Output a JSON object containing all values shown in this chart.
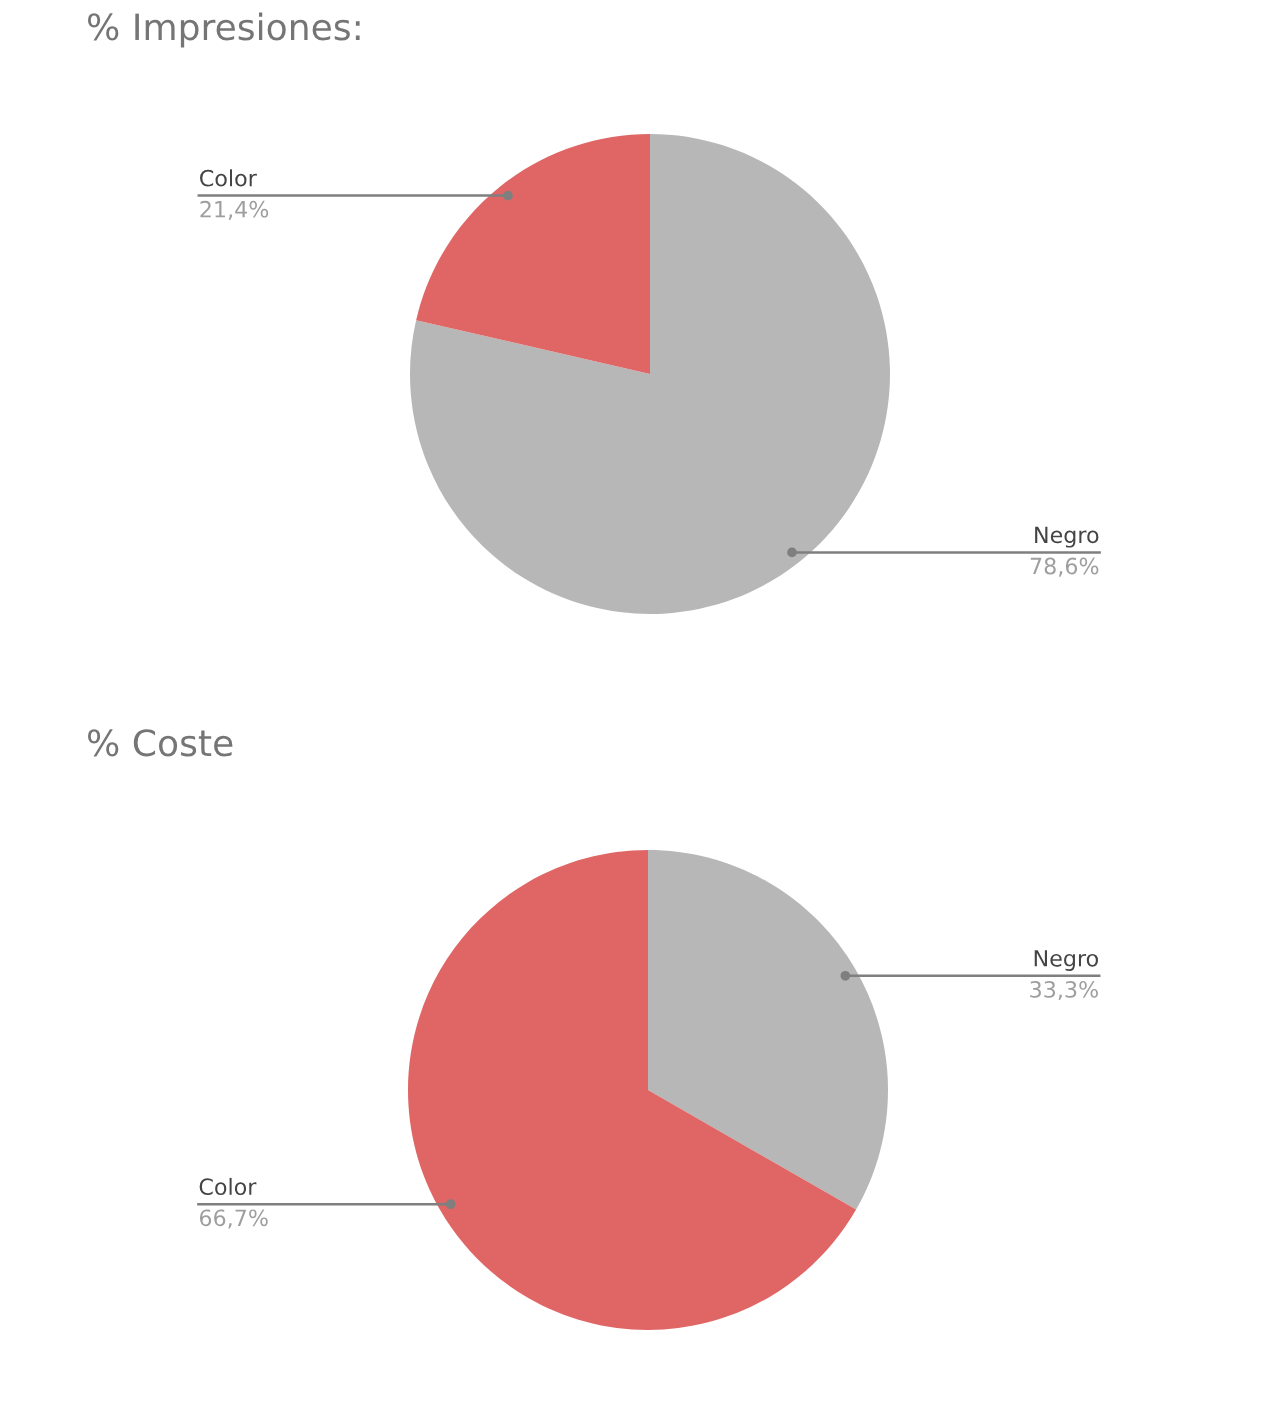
{
  "chart_data": [
    {
      "type": "pie",
      "title": "% Impresiones:",
      "categories": [
        "Negro",
        "Color"
      ],
      "values": [
        78.6,
        21.4
      ],
      "colors": [
        "#b7b7b7",
        "#e06666"
      ],
      "value_labels": [
        "78,6%",
        "21,4%"
      ]
    },
    {
      "type": "pie",
      "title": "% Coste",
      "categories": [
        "Negro",
        "Color"
      ],
      "values": [
        33.3,
        66.7
      ],
      "colors": [
        "#b7b7b7",
        "#e06666"
      ],
      "value_labels": [
        "33,3%",
        "66,7%"
      ]
    }
  ]
}
